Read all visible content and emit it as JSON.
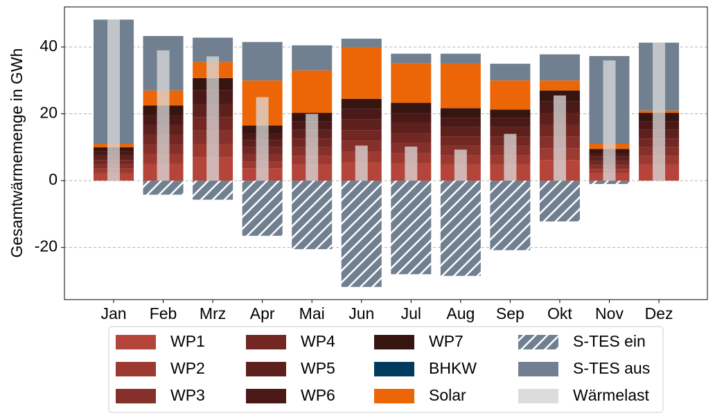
{
  "chart_data": {
    "type": "bar",
    "ylabel": "Gesamtwärmemenge in GWh",
    "categories": [
      "Jan",
      "Feb",
      "Mrz",
      "Apr",
      "Mai",
      "Jun",
      "Jul",
      "Aug",
      "Sep",
      "Okt",
      "Nov",
      "Dez"
    ],
    "series": [
      {
        "name": "WP1",
        "color": "#b5443a",
        "values": [
          2.3,
          5,
          7,
          3.7,
          4.8,
          5.5,
          5.3,
          4.8,
          4.8,
          6.2,
          2.3,
          4.8
        ]
      },
      {
        "name": "WP2",
        "color": "#9c3a31",
        "values": [
          1.3,
          2.9,
          4.0,
          2.1,
          2.6,
          3.2,
          3.0,
          2.8,
          2.8,
          3.5,
          1.2,
          2.6
        ]
      },
      {
        "name": "WP3",
        "color": "#86302b",
        "values": [
          1.3,
          2.9,
          4.0,
          2.1,
          2.6,
          3.2,
          3.0,
          2.8,
          2.8,
          3.5,
          1.2,
          2.6
        ]
      },
      {
        "name": "WP4",
        "color": "#722723",
        "values": [
          1.3,
          2.9,
          4.0,
          2.1,
          2.6,
          3.2,
          3.0,
          2.8,
          2.8,
          3.5,
          1.2,
          2.6
        ]
      },
      {
        "name": "WP5",
        "color": "#5e201c",
        "values": [
          1.3,
          2.9,
          4.0,
          2.1,
          2.6,
          3.2,
          3.0,
          2.8,
          2.8,
          3.5,
          1.2,
          2.6
        ]
      },
      {
        "name": "WP6",
        "color": "#4a1816",
        "values": [
          1.3,
          2.9,
          4.0,
          2.1,
          2.6,
          3.2,
          3.0,
          2.8,
          2.8,
          3.5,
          1.2,
          2.6
        ]
      },
      {
        "name": "WP7",
        "color": "#361410",
        "values": [
          1.2,
          3.0,
          3.7,
          2.3,
          2.5,
          3.0,
          3.0,
          2.9,
          2.5,
          3.3,
          1.2,
          2.5
        ]
      },
      {
        "name": "BHKW",
        "color": "#003a5c",
        "values": [
          0,
          0,
          0,
          0,
          0,
          0,
          0,
          0,
          0,
          0,
          0,
          0
        ]
      },
      {
        "name": "Solar",
        "color": "#ec6608",
        "values": [
          1,
          4.5,
          4.8,
          13.5,
          12.7,
          15.5,
          11.9,
          13.3,
          8.7,
          3,
          1.5,
          0.7
        ]
      },
      {
        "name": "S-TES ein",
        "color": "#708090",
        "hatch": true,
        "values": [
          0,
          -4.2,
          -5.7,
          -16.5,
          -20.5,
          -31.8,
          -28,
          -28.5,
          -20.8,
          -12.2,
          -1,
          0
        ]
      },
      {
        "name": "S-TES aus",
        "color": "#708090",
        "values": [
          37.2,
          16.3,
          7.3,
          11.5,
          7.5,
          2.5,
          2.8,
          3,
          5,
          7.8,
          26.3,
          20.3
        ]
      },
      {
        "name": "Wärmelast",
        "color": "#dcdcdc",
        "overlay": true,
        "values": [
          48.2,
          39,
          37.2,
          25,
          20,
          10.5,
          10.2,
          9.3,
          14,
          25.5,
          36,
          41.3
        ]
      }
    ],
    "ylim": [
      -35.6,
      52
    ],
    "yticks": [
      -20,
      0,
      20,
      40
    ],
    "grid": true,
    "legend": "bottom"
  }
}
